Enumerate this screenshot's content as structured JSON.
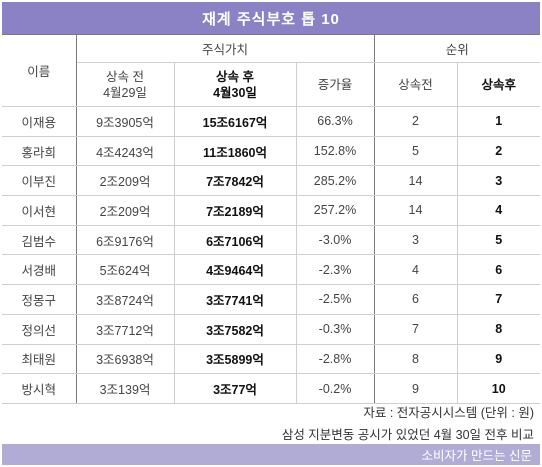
{
  "title": "재계 주식부호 톱 10",
  "headers": {
    "name": "이름",
    "stock_value": "주식가치",
    "before_line1": "상속 전",
    "before_line2": "4월29일",
    "after_line1": "상속 후",
    "after_line2": "4월30일",
    "increase": "증가율",
    "rank": "순위",
    "rank_before": "상속전",
    "rank_after": "상속후"
  },
  "rows": [
    {
      "name": "이재용",
      "before": "9조3905억",
      "after": "15조6167억",
      "increase": "66.3%",
      "rank_before": "2",
      "rank_after": "1"
    },
    {
      "name": "홍라희",
      "before": "4조4243억",
      "after": "11조1860억",
      "increase": "152.8%",
      "rank_before": "5",
      "rank_after": "2"
    },
    {
      "name": "이부진",
      "before": "2조209억",
      "after": "7조7842억",
      "increase": "285.2%",
      "rank_before": "14",
      "rank_after": "3"
    },
    {
      "name": "이서현",
      "before": "2조209억",
      "after": "7조2189억",
      "increase": "257.2%",
      "rank_before": "14",
      "rank_after": "4"
    },
    {
      "name": "김범수",
      "before": "6조9176억",
      "after": "6조7106억",
      "increase": "-3.0%",
      "rank_before": "3",
      "rank_after": "5"
    },
    {
      "name": "서경배",
      "before": "5조624억",
      "after": "4조9464억",
      "increase": "-2.3%",
      "rank_before": "4",
      "rank_after": "6"
    },
    {
      "name": "정몽구",
      "before": "3조8724억",
      "after": "3조7741억",
      "increase": "-2.5%",
      "rank_before": "6",
      "rank_after": "7"
    },
    {
      "name": "정의선",
      "before": "3조7712억",
      "after": "3조7582억",
      "increase": "-0.3%",
      "rank_before": "7",
      "rank_after": "8"
    },
    {
      "name": "최태원",
      "before": "3조6938억",
      "after": "3조5899억",
      "increase": "-2.8%",
      "rank_before": "8",
      "rank_after": "9"
    },
    {
      "name": "방시혁",
      "before": "3조139억",
      "after": "3조77억",
      "increase": "-0.2%",
      "rank_before": "9",
      "rank_after": "10"
    }
  ],
  "source": "자료 : 전자공시시스템 (단위 : 원)",
  "note": "삼성 지분변동 공시가 있었던 4월 30일 전후 비교",
  "footer": "소비자가 만드는 신문"
}
